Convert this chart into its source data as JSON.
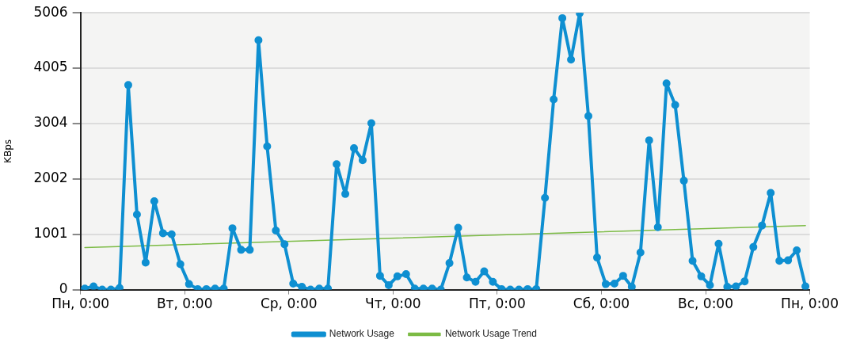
{
  "chart_data": {
    "type": "line",
    "ylabel": "KBps",
    "xlim": [
      "--01-01T00:00",
      "--01-08T00:00"
    ],
    "xticks": [
      {
        "value": "--01-01T00:00",
        "label": "Пн, 0:00"
      },
      {
        "value": "--01-02T00:00",
        "label": "Вт, 0:00"
      },
      {
        "value": "--01-03T00:00",
        "label": "Ср, 0:00"
      },
      {
        "value": "--01-04T00:00",
        "label": "Чт, 0:00"
      },
      {
        "value": "--01-05T00:00",
        "label": "Пт, 0:00"
      },
      {
        "value": "--01-06T00:00",
        "label": "Сб, 0:00"
      },
      {
        "value": "--01-07T00:00",
        "label": "Вс, 0:00"
      },
      {
        "value": "--01-08T00:00",
        "label": "Пн, 0:00"
      }
    ],
    "ylim": [
      0,
      5006
    ],
    "yticks": [
      0,
      1001,
      2002,
      3004,
      4005,
      5006
    ],
    "grid": "y",
    "legend": "bottom",
    "line_style": "solid",
    "series": [
      {
        "name": "Network Usage",
        "color": "#0e8fd1",
        "marker": "circle",
        "x": [
          "--01-01T01:00",
          "--01-01T03:00",
          "--01-01T05:00",
          "--01-01T07:00",
          "--01-01T09:00",
          "--01-01T11:00",
          "--01-01T13:00",
          "--01-01T15:00",
          "--01-01T17:00",
          "--01-01T19:00",
          "--01-01T21:00",
          "--01-01T23:00",
          "--01-02T01:00",
          "--01-02T03:00",
          "--01-02T05:00",
          "--01-02T07:00",
          "--01-02T09:00",
          "--01-02T11:00",
          "--01-02T13:00",
          "--01-02T15:00",
          "--01-02T17:00",
          "--01-02T19:00",
          "--01-02T21:00",
          "--01-02T23:00",
          "--01-03T01:00",
          "--01-03T03:00",
          "--01-03T05:00",
          "--01-03T07:00",
          "--01-03T09:00",
          "--01-03T11:00",
          "--01-03T13:00",
          "--01-03T15:00",
          "--01-03T17:00",
          "--01-03T19:00",
          "--01-03T21:00",
          "--01-03T23:00",
          "--01-04T01:00",
          "--01-04T03:00",
          "--01-04T05:00",
          "--01-04T07:00",
          "--01-04T09:00",
          "--01-04T11:00",
          "--01-04T13:00",
          "--01-04T15:00",
          "--01-04T17:00",
          "--01-04T19:00",
          "--01-04T21:00",
          "--01-04T23:00",
          "--01-05T01:00",
          "--01-05T03:00",
          "--01-05T05:00",
          "--01-05T07:00",
          "--01-05T09:00",
          "--01-05T11:00",
          "--01-05T13:00",
          "--01-05T15:00",
          "--01-05T17:00",
          "--01-05T19:00",
          "--01-05T21:00",
          "--01-05T23:00",
          "--01-06T01:00",
          "--01-06T03:00",
          "--01-06T05:00",
          "--01-06T07:00",
          "--01-06T09:00",
          "--01-06T11:00",
          "--01-06T13:00",
          "--01-06T15:00",
          "--01-06T17:00",
          "--01-06T19:00",
          "--01-06T21:00",
          "--01-06T23:00",
          "--01-07T01:00",
          "--01-07T03:00",
          "--01-07T05:00",
          "--01-07T07:00",
          "--01-07T09:00",
          "--01-07T11:00",
          "--01-07T13:00",
          "--01-07T15:00",
          "--01-07T17:00",
          "--01-07T19:00",
          "--01-07T21:00",
          "--01-07T23:00"
        ],
        "values": [
          20,
          60,
          0,
          0,
          30,
          3700,
          1360,
          490,
          1600,
          1020,
          1000,
          460,
          100,
          10,
          10,
          20,
          20,
          1110,
          720,
          720,
          4510,
          2590,
          1070,
          820,
          110,
          50,
          0,
          20,
          20,
          2270,
          1730,
          2560,
          2340,
          3010,
          250,
          80,
          240,
          280,
          20,
          20,
          20,
          0,
          480,
          1120,
          220,
          140,
          330,
          140,
          10,
          0,
          0,
          10,
          10,
          1660,
          3440,
          4910,
          4160,
          5000,
          3140,
          580,
          100,
          110,
          250,
          50,
          670,
          2700,
          1130,
          3730,
          3340,
          1970,
          520,
          240,
          80,
          830,
          50,
          60,
          150,
          770,
          1160,
          1750,
          520,
          530,
          710,
          60
        ]
      },
      {
        "name": "Network Usage Trend",
        "color": "#7cbb45",
        "marker": "none",
        "x": [
          "--01-01T01:00",
          "--01-07T23:00"
        ],
        "values": [
          760,
          1160
        ]
      }
    ]
  }
}
